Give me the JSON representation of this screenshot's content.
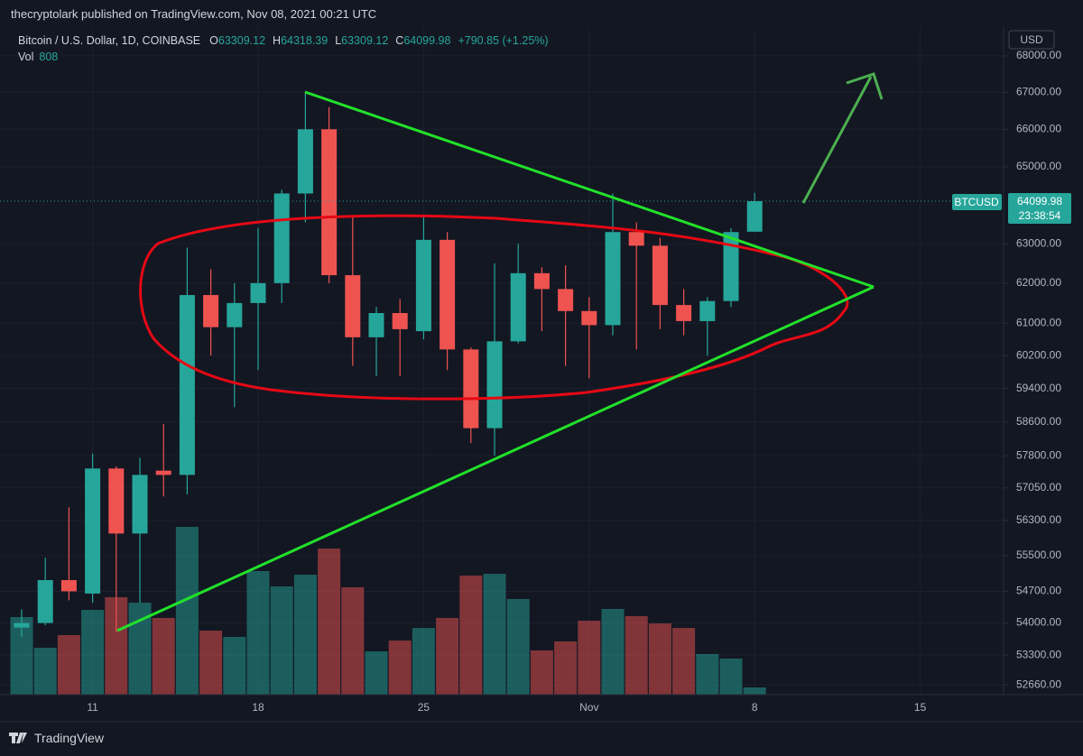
{
  "header": {
    "published": "thecryptolark published on TradingView.com, Nov 08, 2021 00:21 UTC"
  },
  "footer": {
    "brand": "TradingView"
  },
  "chart_data": {
    "type": "candlestick",
    "title": "Bitcoin / U.S. Dollar, 1D, COINBASE",
    "ohlc_labels": [
      "O",
      "H",
      "L",
      "C"
    ],
    "change": "+790.85 (+1.25%)",
    "volume_label": "Vol",
    "currency": "USD",
    "symbol": "BTCUSD",
    "countdown": "23:38:54",
    "up_color": "#26a69a",
    "down_color": "#ef5350",
    "log_scale": true,
    "grid": true,
    "categories": [
      null,
      null,
      null,
      "11",
      null,
      null,
      null,
      null,
      null,
      null,
      "18",
      null,
      null,
      null,
      null,
      null,
      null,
      "25",
      null,
      null,
      null,
      null,
      null,
      null,
      "Nov",
      null,
      null,
      null,
      null,
      null,
      null,
      "8",
      null,
      null,
      null,
      null,
      null,
      null,
      "15"
    ],
    "open": [
      53900,
      54000,
      54950,
      54650,
      57500,
      56000,
      57450,
      57350,
      61700,
      60900,
      61500,
      62000,
      64300,
      66000,
      62200,
      60650,
      61250,
      60800,
      63100,
      60350,
      58450,
      60550,
      62250,
      61850,
      61300,
      60950,
      63300,
      62950,
      61450,
      61050,
      61550,
      63309.12,
      null,
      null,
      null,
      null,
      null,
      null,
      null
    ],
    "high": [
      54300,
      55450,
      56600,
      57850,
      57550,
      57750,
      58550,
      62900,
      62350,
      62000,
      63400,
      64400,
      67000,
      66600,
      63700,
      61400,
      61600,
      63750,
      63300,
      60400,
      62500,
      63000,
      62400,
      62450,
      61650,
      64300,
      63550,
      63150,
      61850,
      61650,
      63400,
      64318.39,
      null,
      null,
      null,
      null,
      null,
      null,
      null
    ],
    "low": [
      53700,
      53950,
      54500,
      54450,
      53800,
      54450,
      56850,
      56900,
      60200,
      58950,
      59850,
      61500,
      63550,
      62000,
      59950,
      59700,
      59700,
      60600,
      59850,
      58100,
      57800,
      60500,
      60800,
      59950,
      59650,
      60700,
      60350,
      60850,
      60700,
      60200,
      61400,
      63309.12,
      null,
      null,
      null,
      null,
      null,
      null,
      null
    ],
    "close": [
      54000,
      54950,
      54700,
      57500,
      56000,
      57350,
      57350,
      61700,
      60900,
      61500,
      62000,
      64300,
      66000,
      62200,
      60650,
      61250,
      60850,
      63100,
      60350,
      58450,
      60550,
      62250,
      61850,
      61300,
      60950,
      63300,
      62950,
      61450,
      61050,
      61550,
      63300,
      64099.98,
      null,
      null,
      null,
      null,
      null,
      null,
      null
    ],
    "volume": [
      8690,
      5250,
      6670,
      9490,
      10910,
      10300,
      8590,
      18790,
      7170,
      6460,
      13840,
      12120,
      13430,
      16360,
      12020,
      4850,
      6060,
      7470,
      8590,
      13330,
      13530,
      10710,
      4950,
      5960,
      8280,
      9600,
      8790,
      7980,
      7470,
      4550,
      4040,
      808,
      null,
      null,
      null,
      null,
      null,
      null,
      null
    ],
    "ylim": [
      52450,
      68800
    ],
    "yticks": [
      {
        "value": 52660,
        "label": "52660.00"
      },
      {
        "value": 53300,
        "label": "53300.00"
      },
      {
        "value": 54000,
        "label": "54000.00"
      },
      {
        "value": 54700,
        "label": "54700.00"
      },
      {
        "value": 55500,
        "label": "55500.00"
      },
      {
        "value": 56300,
        "label": "56300.00"
      },
      {
        "value": 57050,
        "label": "57050.00"
      },
      {
        "value": 57800,
        "label": "57800.00"
      },
      {
        "value": 58600,
        "label": "58600.00"
      },
      {
        "value": 59400,
        "label": "59400.00"
      },
      {
        "value": 60200,
        "label": "60200.00"
      },
      {
        "value": 61000,
        "label": "61000.00"
      },
      {
        "value": 62000,
        "label": "62000.00"
      },
      {
        "value": 63000,
        "label": "63000.00"
      },
      {
        "value": 65000,
        "label": "65000.00"
      },
      {
        "value": 66000,
        "label": "66000.00"
      },
      {
        "value": 67000,
        "label": "67000.00"
      },
      {
        "value": 68000,
        "label": "68000.00"
      }
    ]
  }
}
